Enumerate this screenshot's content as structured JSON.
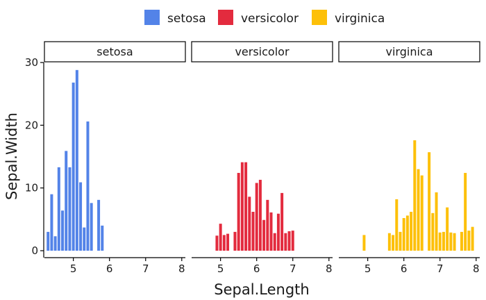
{
  "chart_data": {
    "type": "bar",
    "xlabel": "Sepal.Length",
    "ylabel": "Sepal.Width",
    "xlim": [
      4.2,
      8.1
    ],
    "ylim": [
      0,
      30
    ],
    "x_ticks": [
      5,
      6,
      7,
      8
    ],
    "y_ticks": [
      0,
      10,
      20,
      30
    ],
    "bar_width": 0.1,
    "legend_position": "top",
    "grid": false,
    "series": [
      {
        "name": "setosa",
        "color": "#5383E8",
        "x": [
          4.3,
          4.4,
          4.5,
          4.6,
          4.7,
          4.8,
          4.9,
          5.0,
          5.1,
          5.2,
          5.3,
          5.4,
          5.5,
          5.7,
          5.8
        ],
        "values": [
          3.0,
          9.0,
          2.3,
          13.3,
          6.4,
          15.9,
          13.3,
          26.8,
          28.8,
          10.9,
          3.7,
          20.6,
          7.6,
          8.1,
          4.0
        ]
      },
      {
        "name": "versicolor",
        "color": "#E32B3E",
        "x": [
          4.9,
          5.0,
          5.1,
          5.2,
          5.4,
          5.5,
          5.6,
          5.7,
          5.8,
          5.9,
          6.0,
          6.1,
          6.2,
          6.3,
          6.4,
          6.5,
          6.6,
          6.7,
          6.8,
          6.9,
          7.0
        ],
        "values": [
          2.4,
          4.3,
          2.5,
          2.7,
          3.0,
          12.4,
          14.1,
          14.1,
          8.6,
          6.2,
          10.8,
          11.3,
          4.9,
          8.1,
          6.1,
          2.8,
          5.9,
          9.2,
          2.8,
          3.1,
          3.2
        ]
      },
      {
        "name": "virginica",
        "color": "#FDC009",
        "x": [
          4.9,
          5.6,
          5.7,
          5.8,
          5.9,
          6.0,
          6.1,
          6.2,
          6.3,
          6.4,
          6.5,
          6.7,
          6.8,
          6.9,
          7.0,
          7.1,
          7.2,
          7.3,
          7.4,
          7.6,
          7.7,
          7.8,
          7.9
        ],
        "values": [
          2.5,
          2.8,
          2.5,
          8.2,
          3.0,
          5.2,
          5.6,
          6.2,
          17.6,
          13.0,
          12.0,
          15.7,
          6.0,
          9.3,
          2.9,
          3.0,
          6.9,
          2.9,
          2.8,
          3.0,
          12.4,
          3.2,
          3.8
        ]
      }
    ]
  }
}
